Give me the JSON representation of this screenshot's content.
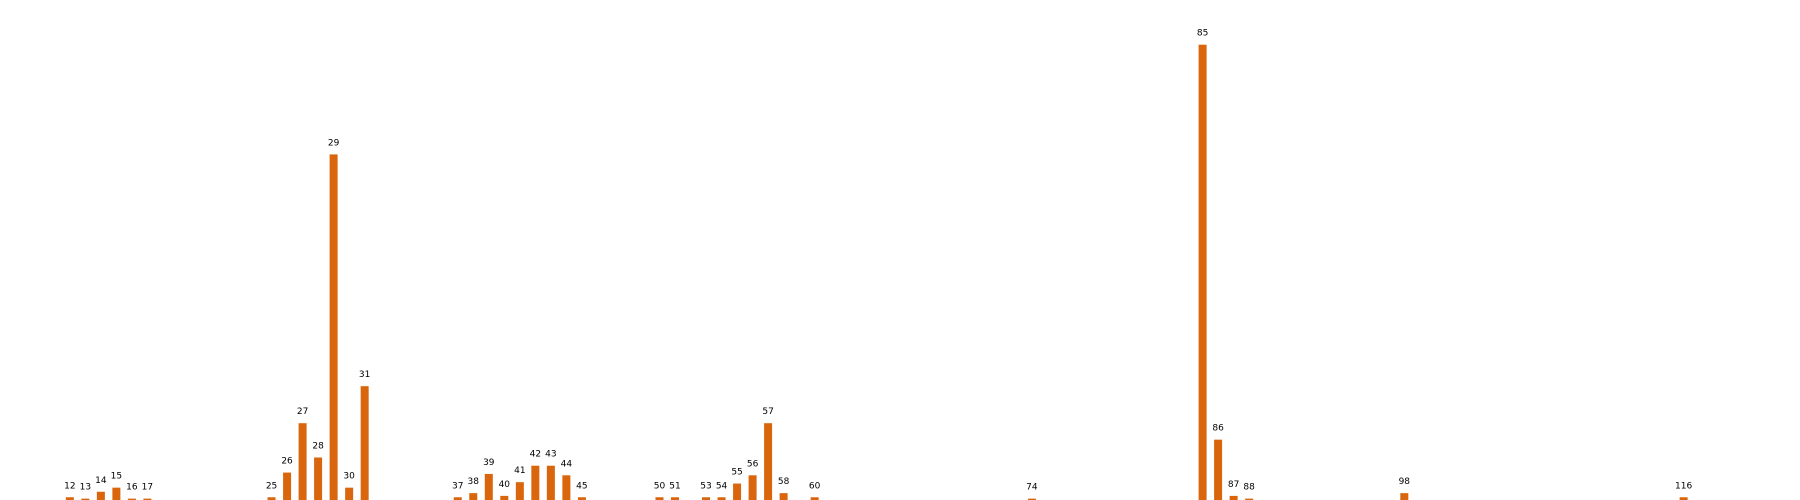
{
  "chart_data": {
    "type": "bar",
    "bar_color": "#d9650c",
    "grid": false,
    "axes_visible": false,
    "x_unit_note": "",
    "bars": [
      {
        "x": 12,
        "label": "12",
        "value": 1
      },
      {
        "x": 13,
        "label": "13",
        "value": 0.5
      },
      {
        "x": 14,
        "label": "14",
        "value": 3
      },
      {
        "x": 15,
        "label": "15",
        "value": 4.5
      },
      {
        "x": 16,
        "label": "16",
        "value": 0.5
      },
      {
        "x": 17,
        "label": "17",
        "value": 0.5
      },
      {
        "x": 25,
        "label": "25",
        "value": 1
      },
      {
        "x": 26,
        "label": "26",
        "value": 10
      },
      {
        "x": 27,
        "label": "27",
        "value": 28
      },
      {
        "x": 28,
        "label": "28",
        "value": 15.5
      },
      {
        "x": 29,
        "label": "29",
        "value": 126
      },
      {
        "x": 30,
        "label": "30",
        "value": 4.5
      },
      {
        "x": 31,
        "label": "31",
        "value": 41.5
      },
      {
        "x": 37,
        "label": "37",
        "value": 1
      },
      {
        "x": 38,
        "label": "38",
        "value": 2.5
      },
      {
        "x": 39,
        "label": "39",
        "value": 9.5
      },
      {
        "x": 40,
        "label": "40",
        "value": 1.5
      },
      {
        "x": 41,
        "label": "41",
        "value": 6.5
      },
      {
        "x": 42,
        "label": "42",
        "value": 12.5
      },
      {
        "x": 43,
        "label": "43",
        "value": 12.5
      },
      {
        "x": 44,
        "label": "44",
        "value": 9
      },
      {
        "x": 45,
        "label": "45",
        "value": 1
      },
      {
        "x": 50,
        "label": "50",
        "value": 1
      },
      {
        "x": 51,
        "label": "51",
        "value": 1
      },
      {
        "x": 53,
        "label": "53",
        "value": 1
      },
      {
        "x": 54,
        "label": "54",
        "value": 1
      },
      {
        "x": 55,
        "label": "55",
        "value": 6
      },
      {
        "x": 56,
        "label": "56",
        "value": 9
      },
      {
        "x": 57,
        "label": "57",
        "value": 28
      },
      {
        "x": 58,
        "label": "58",
        "value": 2.5
      },
      {
        "x": 60,
        "label": "60",
        "value": 1
      },
      {
        "x": 74,
        "label": "74",
        "value": 0.5
      },
      {
        "x": 85,
        "label": "85",
        "value": 166
      },
      {
        "x": 86,
        "label": "86",
        "value": 22
      },
      {
        "x": 87,
        "label": "87",
        "value": 1.5
      },
      {
        "x": 88,
        "label": "88",
        "value": 0.5
      },
      {
        "x": 98,
        "label": "98",
        "value": 2.5
      },
      {
        "x": 116,
        "label": "116",
        "value": 1
      }
    ],
    "xlim": [
      7.5,
      123.5
    ],
    "ylim": [
      0,
      175
    ]
  }
}
